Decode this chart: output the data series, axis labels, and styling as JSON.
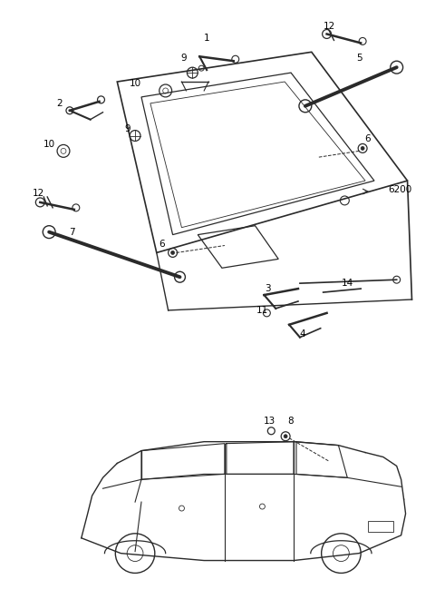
{
  "background_color": "#ffffff",
  "line_color": "#2a2a2a",
  "label_color": "#000000",
  "fig_width": 4.8,
  "fig_height": 6.6,
  "dpi": 100
}
